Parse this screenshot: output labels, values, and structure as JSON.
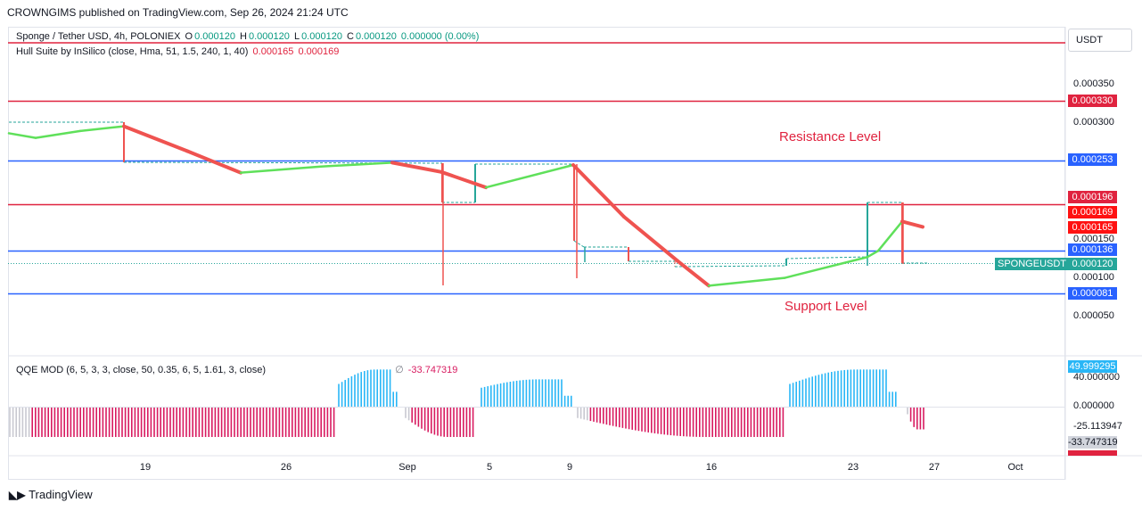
{
  "header": {
    "publisher_line": "CROWNGIMS published on TradingView.com, Sep 26, 2024 21:24 UTC"
  },
  "symbol_legend": {
    "name": "Sponge / Tether USD, 4h, POLONIEX",
    "o_label": "O",
    "o": "0.000120",
    "h_label": "H",
    "h": "0.000120",
    "l_label": "L",
    "l": "0.000120",
    "c_label": "C",
    "c": "0.000120",
    "change": "0.000000 (0.00%)"
  },
  "indicator_legend": {
    "name": "Hull Suite by InSilico (close, Hma, 51, 1.5, 240, 1, 40)",
    "v1": "0.000165",
    "v2": "0.000169"
  },
  "qqe_legend": {
    "name": "QQE MOD (6, 5, 3, 3, close, 50, 0.35, 6, 5, 1.61, 3, close)",
    "v1": "-33.747319"
  },
  "currency_button": "USDT",
  "branding": "TradingView",
  "annotations": {
    "resistance": "Resistance Level",
    "support": "Support Level"
  },
  "colors": {
    "red_line": "#e0233f",
    "blue_line": "#2962ff",
    "bull": "#5fe05a",
    "bear": "#ef5350",
    "qqe_pink": "#d81b60",
    "qqe_blue": "#29b6f6"
  },
  "chart_data": {
    "type": "line",
    "symbol_tag": "SPONGEUSDT",
    "x_ticks": [
      "19",
      "26",
      "Sep",
      "5",
      "9",
      "16",
      "23",
      "27",
      "Oct"
    ],
    "price_axis_ticks": [
      "0.000350",
      "0.000300",
      "0.000100",
      "0.000050"
    ],
    "horizontal_levels": [
      {
        "value": 0.00033,
        "label": "0.000330",
        "color": "#e0233f",
        "role": "resistance"
      },
      {
        "value": 0.000253,
        "label": "0.000253",
        "color": "#2962ff",
        "role": "resistance"
      },
      {
        "value": 0.000196,
        "label": "0.000196",
        "color": "#e0233f",
        "role": "resistance"
      },
      {
        "value": 0.000136,
        "label": "0.000136",
        "color": "#2962ff",
        "role": "support"
      },
      {
        "value": 8.1e-05,
        "label": "0.000081",
        "color": "#2962ff",
        "role": "support"
      }
    ],
    "current_price": {
      "value": 0.00012,
      "label": "0.000120"
    },
    "hull_values": [
      {
        "value": 0.000169,
        "label": "0.000169"
      },
      {
        "value": 0.000165,
        "label": "0.000165"
      }
    ],
    "partial_tick": "0.000150",
    "ylim": [
      3e-05,
      0.000375
    ],
    "hull_line": {
      "x": [
        "Aug 12",
        "Aug 14",
        "Aug 17",
        "Aug 19",
        "Aug 22",
        "Aug 25",
        "Aug 29",
        "Sep 2",
        "Sep 4",
        "Sep 5",
        "Sep 9",
        "Sep 11",
        "Sep 13",
        "Sep 16",
        "Sep 20",
        "Sep 23",
        "Sep 24",
        "Sep 25",
        "Sep 26"
      ],
      "y": [
        0.000288,
        0.000282,
        0.000291,
        0.000297,
        0.000265,
        0.000237,
        0.000245,
        0.00025,
        0.000238,
        0.000218,
        0.000247,
        0.00018,
        0.000123,
        9.1e-05,
        0.000101,
        0.000128,
        0.000136,
        0.000174,
        0.000167
      ],
      "trend": [
        "up",
        "up",
        "up",
        "down",
        "down",
        "up",
        "up",
        "down",
        "down",
        "up",
        "down",
        "down",
        "down",
        "up",
        "up",
        "up",
        "up",
        "down",
        "down"
      ]
    },
    "qqe": {
      "value_labels": [
        "49.999295",
        "40.000000",
        "0.000000",
        "-25.113947",
        "-33.747319"
      ],
      "levels": [
        49.999295,
        0.0,
        -25.113947,
        -33.747319
      ],
      "ylim": [
        -50,
        55
      ]
    }
  }
}
